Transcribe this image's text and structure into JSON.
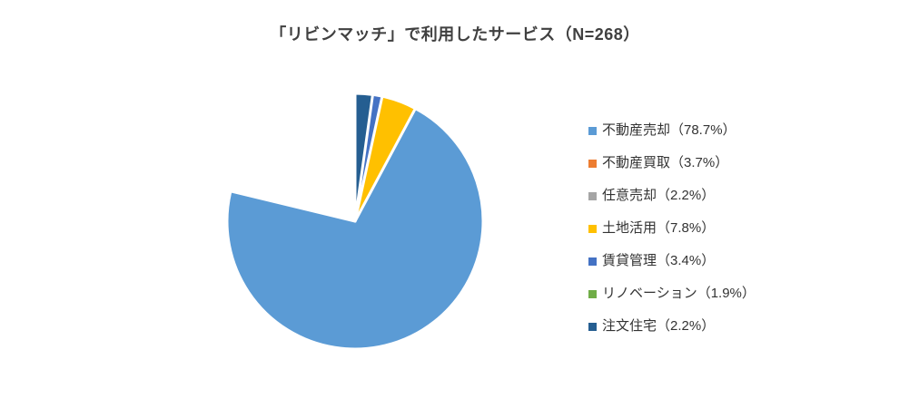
{
  "chart_data": {
    "type": "pie",
    "title": "「リビンマッチ」で利用したサービス（N=268）",
    "n_label": "N=268",
    "categories": [
      "不動産売却",
      "不動産買取",
      "任意売却",
      "土地活用",
      "賃貸管理",
      "リノベーション",
      "注文住宅"
    ],
    "values": [
      78.7,
      3.7,
      2.2,
      7.8,
      3.4,
      1.9,
      2.2
    ],
    "unit": "%",
    "colors": [
      "#5B9BD5",
      "#ED7D31",
      "#A5A5A5",
      "#FFC000",
      "#4472C4",
      "#70AD47",
      "#255E91"
    ],
    "start_angle_deg": 0,
    "direction": "clockwise",
    "slice_gap_color": "#FFFFFF",
    "title_color": "#404040",
    "legend_text_color": "#333333",
    "legend": {
      "position": "right",
      "labels": [
        "不動産売却（78.7%）",
        "不動産買取（3.7%）",
        "任意売却（2.2%）",
        "土地活用（7.8%）",
        "賃貸管理（3.4%）",
        "リノベーション（1.9%）",
        "注文住宅（2.2%）"
      ]
    }
  }
}
